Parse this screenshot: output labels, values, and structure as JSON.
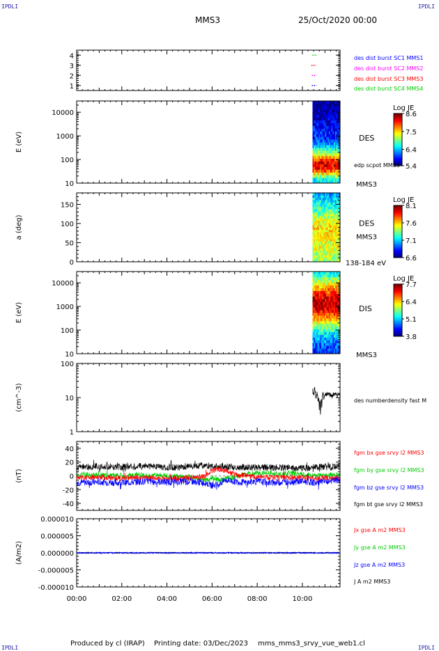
{
  "header": {
    "corner_mark": "IPDLI",
    "spacecraft": "MMS3",
    "datetime": "25/Oct/2020 00:00"
  },
  "footer": {
    "produced_by": "Produced by cl (IRAP)",
    "printing_date": "Printing date: 03/Dec/2023",
    "config_name": "mms_mms3_srvy_vue_web1.cl"
  },
  "colors": {
    "blue": "#0000ff",
    "magenta": "#ff00ff",
    "red": "#ff0000",
    "green": "#00cc00",
    "black": "#000000"
  },
  "chart_data": [
    {
      "id": "burst",
      "type": "scatter",
      "xlim": [
        0,
        11.67
      ],
      "ylim": [
        0.5,
        4.5
      ],
      "yticks": [
        "1",
        "2",
        "3",
        "4"
      ],
      "legend": [
        {
          "label": "des dist burst SC1 MMS1",
          "color": "#0000ff"
        },
        {
          "label": "des dist burst SC2 MMS2",
          "color": "#ff00ff"
        },
        {
          "label": "des dist burst SC3 MMS3",
          "color": "#ff0000"
        },
        {
          "label": "des dist burst SC4 MMS4",
          "color": "#00cc00"
        }
      ],
      "segments": [
        {
          "sc": 4,
          "x": [
            10.45,
            10.65
          ],
          "color": "#00cc00"
        },
        {
          "sc": 3,
          "x": [
            10.4,
            10.6
          ],
          "color": "#ff0000"
        },
        {
          "sc": 2,
          "x": [
            10.42,
            10.62
          ],
          "color": "#ff00ff"
        },
        {
          "sc": 1,
          "x": [
            10.42,
            10.62
          ],
          "color": "#0000ff"
        }
      ]
    },
    {
      "id": "des_energy",
      "type": "heatmap",
      "ylabel": "E (eV)",
      "yscale": "log",
      "ylim": [
        10,
        30000
      ],
      "yticks": [
        "10",
        "100",
        "1000",
        "10000"
      ],
      "data_x_range": [
        10.45,
        11.67
      ],
      "label": "DES",
      "sublabel": "edp scpot MMS3",
      "sc_label": "MMS3",
      "colorbar": {
        "title": "Log JE",
        "min": 5.4,
        "max": 8.6,
        "ticks": [
          "8.6",
          "7.5",
          "6.4",
          "5.4"
        ]
      },
      "profile": [
        {
          "E": 15,
          "v": 6.6
        },
        {
          "E": 40,
          "v": 8.2
        },
        {
          "E": 80,
          "v": 8.3
        },
        {
          "E": 150,
          "v": 7.4
        },
        {
          "E": 300,
          "v": 6.6
        },
        {
          "E": 700,
          "v": 6.0
        },
        {
          "E": 2000,
          "v": 5.8
        },
        {
          "E": 6000,
          "v": 5.6
        },
        {
          "E": 20000,
          "v": 5.5
        }
      ]
    },
    {
      "id": "des_pitch",
      "type": "heatmap",
      "ylabel": "a (deg)",
      "ylim": [
        0,
        180
      ],
      "yticks": [
        "0",
        "50",
        "100",
        "150"
      ],
      "data_x_range": [
        10.45,
        11.67
      ],
      "label": "DES",
      "sc_label": "MMS3",
      "energy_label": "138-184 eV",
      "colorbar": {
        "title": "Log JE",
        "min": 6.6,
        "max": 8.1,
        "ticks": [
          "8.1",
          "7.6",
          "7.1",
          "6.6"
        ]
      },
      "profile": [
        {
          "a": 0,
          "v": 7.4
        },
        {
          "a": 45,
          "v": 7.5
        },
        {
          "a": 90,
          "v": 7.6
        },
        {
          "a": 135,
          "v": 7.3
        },
        {
          "a": 180,
          "v": 7.0
        }
      ]
    },
    {
      "id": "dis_energy",
      "type": "heatmap",
      "ylabel": "E (eV)",
      "yscale": "log",
      "ylim": [
        10,
        30000
      ],
      "yticks": [
        "10",
        "100",
        "1000",
        "10000"
      ],
      "data_x_range": [
        10.45,
        11.67
      ],
      "label": "DIS",
      "sc_label": "MMS3",
      "colorbar": {
        "title": "Log JE",
        "min": 3.8,
        "max": 7.7,
        "ticks": [
          "7.7",
          "6.4",
          "5.1",
          "3.8"
        ]
      },
      "profile": [
        {
          "E": 15,
          "v": 4.5
        },
        {
          "E": 50,
          "v": 5.0
        },
        {
          "E": 150,
          "v": 5.8
        },
        {
          "E": 400,
          "v": 6.8
        },
        {
          "E": 1000,
          "v": 7.5
        },
        {
          "E": 2500,
          "v": 7.3
        },
        {
          "E": 6000,
          "v": 6.6
        },
        {
          "E": 15000,
          "v": 5.8
        },
        {
          "E": 25000,
          "v": 5.3
        }
      ]
    },
    {
      "id": "density",
      "type": "line",
      "ylabel": "(cm^-3)",
      "yscale": "log",
      "ylim": [
        1,
        100
      ],
      "yticks": [
        "1",
        "10",
        "100"
      ],
      "legend": [
        {
          "label": "des numberdensity fast M",
          "color": "#000000"
        }
      ],
      "series": [
        {
          "name": "des numberdensity fast M",
          "color": "#000000",
          "points": [
            [
              10.45,
              16
            ],
            [
              10.5,
              12
            ],
            [
              10.55,
              20
            ],
            [
              10.6,
              9
            ],
            [
              10.65,
              14
            ],
            [
              10.7,
              7
            ],
            [
              10.72,
              11
            ],
            [
              10.75,
              5
            ],
            [
              10.78,
              8
            ],
            [
              10.8,
              3.2
            ],
            [
              10.83,
              9
            ],
            [
              10.86,
              6
            ],
            [
              10.9,
              13
            ],
            [
              10.95,
              10
            ],
            [
              11.0,
              12
            ],
            [
              11.1,
              13
            ],
            [
              11.2,
              12
            ],
            [
              11.3,
              11
            ],
            [
              11.4,
              13
            ],
            [
              11.5,
              12
            ],
            [
              11.6,
              12.5
            ],
            [
              11.67,
              12
            ]
          ]
        }
      ]
    },
    {
      "id": "magnetic",
      "type": "line",
      "ylabel": "(nT)",
      "ylim": [
        -50,
        50
      ],
      "yticks": [
        "-40",
        "-20",
        "0",
        "20",
        "40"
      ],
      "legend": [
        {
          "label": "fgm bx gse srvy l2 MMS3",
          "color": "#ff0000"
        },
        {
          "label": "fgm by gse srvy l2 MMS3",
          "color": "#00cc00"
        },
        {
          "label": "fgm bz gse srvy l2 MMS3",
          "color": "#0000ff"
        },
        {
          "label": "fgm bt gse srvy l2 MMS3",
          "color": "#000000"
        }
      ],
      "series": [
        {
          "name": "bt",
          "color": "#000000",
          "noise": 5,
          "points": [
            [
              0,
              12
            ],
            [
              1,
              14
            ],
            [
              2,
              13
            ],
            [
              3,
              14
            ],
            [
              4,
              12
            ],
            [
              5,
              14
            ],
            [
              5.8,
              15
            ],
            [
              6.2,
              13
            ],
            [
              6.5,
              14
            ],
            [
              7,
              12
            ],
            [
              7.6,
              13
            ],
            [
              8,
              12
            ],
            [
              9,
              12
            ],
            [
              10,
              11
            ],
            [
              10.5,
              12
            ],
            [
              11.67,
              14
            ]
          ]
        },
        {
          "name": "bx",
          "color": "#ff0000",
          "noise": 4,
          "points": [
            [
              0,
              -3
            ],
            [
              1,
              -2
            ],
            [
              2,
              -3
            ],
            [
              3,
              -3
            ],
            [
              4,
              -4
            ],
            [
              5,
              -3
            ],
            [
              5.7,
              0
            ],
            [
              6.0,
              8
            ],
            [
              6.3,
              10
            ],
            [
              6.6,
              8
            ],
            [
              7,
              2
            ],
            [
              7.5,
              0
            ],
            [
              8,
              -2
            ],
            [
              9,
              -2
            ],
            [
              10,
              -3
            ],
            [
              10.6,
              -4
            ],
            [
              11.67,
              -3
            ]
          ]
        },
        {
          "name": "by",
          "color": "#00cc00",
          "noise": 4,
          "points": [
            [
              0,
              2
            ],
            [
              1,
              1
            ],
            [
              2,
              0
            ],
            [
              3,
              1
            ],
            [
              4,
              0
            ],
            [
              5,
              -2
            ],
            [
              5.7,
              -6
            ],
            [
              6.0,
              -4
            ],
            [
              6.3,
              -6
            ],
            [
              6.6,
              -4
            ],
            [
              7,
              -2
            ],
            [
              7.5,
              3
            ],
            [
              8,
              4
            ],
            [
              8.6,
              5
            ],
            [
              9,
              2
            ],
            [
              9.6,
              4
            ],
            [
              10,
              2
            ],
            [
              10.6,
              0
            ],
            [
              11.67,
              2
            ]
          ]
        },
        {
          "name": "bz",
          "color": "#0000ff",
          "noise": 5,
          "points": [
            [
              0,
              -10
            ],
            [
              1,
              -9
            ],
            [
              2,
              -10
            ],
            [
              3,
              -8
            ],
            [
              4,
              -9
            ],
            [
              5,
              -8
            ],
            [
              5.7,
              -10
            ],
            [
              6.0,
              -14
            ],
            [
              6.3,
              -12
            ],
            [
              6.6,
              -6
            ],
            [
              7,
              -8
            ],
            [
              7.5,
              -10
            ],
            [
              8,
              -8
            ],
            [
              8.6,
              -10
            ],
            [
              9,
              -9
            ],
            [
              10,
              -8
            ],
            [
              10.6,
              -10
            ],
            [
              11.67,
              -6
            ]
          ]
        }
      ]
    },
    {
      "id": "current",
      "type": "line",
      "ylabel": "(A/m2)",
      "ylim": [
        -1e-05,
        1e-05
      ],
      "yticks": [
        "-0.000010",
        "-0.000005",
        "0.000000",
        "0.000005",
        "0.000010"
      ],
      "xlim": [
        0,
        11.67
      ],
      "xticks": [
        "00:00",
        "02:00",
        "04:00",
        "06:00",
        "08:00",
        "10:00"
      ],
      "legend": [
        {
          "label": "Jx gse A m2 MMS3",
          "color": "#ff0000"
        },
        {
          "label": "Jy gse A m2 MMS3",
          "color": "#00cc00"
        },
        {
          "label": "Jz gse A m2 MMS3",
          "color": "#0000ff"
        },
        {
          "label": "J A m2 MMS3",
          "color": "#000000"
        }
      ],
      "series": [
        {
          "name": "J",
          "color": "#000000",
          "value": 0.0
        },
        {
          "name": "Jz",
          "color": "#0000ff",
          "value": 0.0
        }
      ]
    }
  ]
}
